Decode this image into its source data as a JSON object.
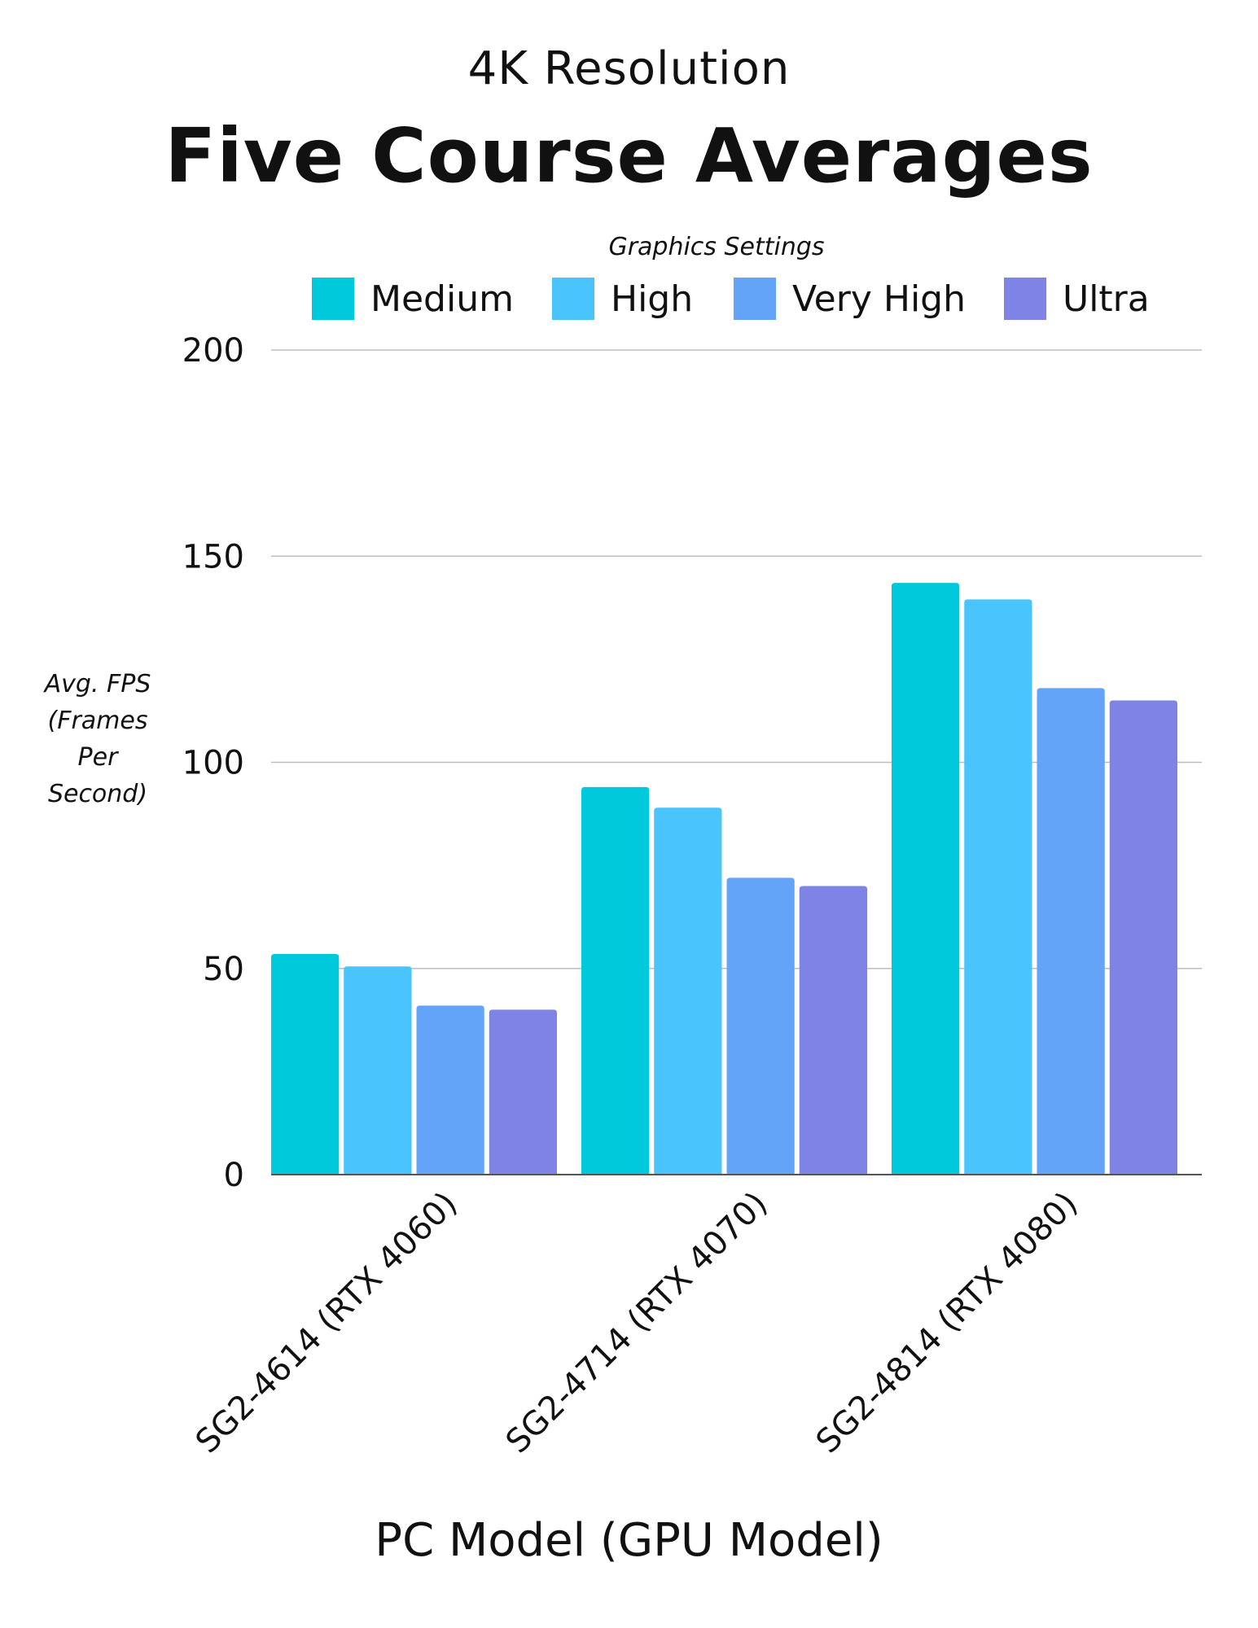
{
  "chart_data": {
    "type": "bar",
    "subtitle": "4K Resolution",
    "title": "Five Course Averages",
    "legend_title": "Graphics Settings",
    "xlabel": "PC Model (GPU Model)",
    "ylabel_lines": [
      "Avg. FPS",
      "(Frames",
      "Per",
      "Second)"
    ],
    "categories": [
      "SG2-4614 (RTX 4060)",
      "SG2-4714 (RTX 4070)",
      "SG2-4814 (RTX 4080)"
    ],
    "series": [
      {
        "name": "Medium",
        "color": "#00c9dc",
        "values": [
          53.5,
          94,
          143.5
        ]
      },
      {
        "name": "High",
        "color": "#49c4fc",
        "values": [
          50.5,
          89,
          139.5
        ]
      },
      {
        "name": "Very High",
        "color": "#63a4f8",
        "values": [
          41,
          72,
          118
        ]
      },
      {
        "name": "Ultra",
        "color": "#7f83e6",
        "values": [
          40,
          70,
          115
        ]
      }
    ],
    "ylim": [
      0,
      200
    ],
    "yticks": [
      0,
      50,
      100,
      150,
      200
    ],
    "grid": true,
    "legend_position": "top"
  }
}
